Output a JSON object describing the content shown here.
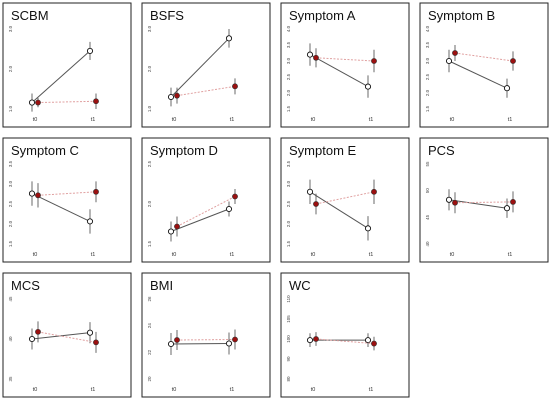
{
  "chart_data": [
    {
      "type": "line",
      "title": "SCBM",
      "x": [
        "t0",
        "t1"
      ],
      "ytick_labels": [
        "1.0",
        "2.0",
        "3.0"
      ],
      "ylim": [
        0.7,
        3.8
      ],
      "series": [
        {
          "marker": "open-black",
          "values": [
            0.95,
            2.95
          ],
          "err": [
            0.35,
            0.35
          ]
        },
        {
          "marker": "red-dot",
          "values": [
            0.95,
            1.0
          ],
          "err": [
            0.18,
            0.3
          ]
        }
      ]
    },
    {
      "type": "line",
      "title": "BSFS",
      "x": [
        "t0",
        "t1"
      ],
      "ytick_labels": [
        "1.0",
        "2.0",
        "3.0"
      ],
      "ylim": [
        0.9,
        3.9
      ],
      "series": [
        {
          "marker": "open-black",
          "values": [
            1.35,
            3.55
          ],
          "err": [
            0.35,
            0.35
          ]
        },
        {
          "marker": "red-dot",
          "values": [
            1.4,
            1.75
          ],
          "err": [
            0.3,
            0.3
          ]
        }
      ]
    },
    {
      "type": "line",
      "title": "Symptom A",
      "x": [
        "t0",
        "t1"
      ],
      "ytick_labels": [
        "1.5",
        "2.0",
        "2.5",
        "3.0",
        "3.5",
        "4.0"
      ],
      "ylim": [
        1.5,
        4.0
      ],
      "series": [
        {
          "marker": "open-black",
          "values": [
            3.2,
            2.2
          ],
          "err": [
            0.35,
            0.35
          ]
        },
        {
          "marker": "red-dot",
          "values": [
            3.1,
            3.0
          ],
          "err": [
            0.3,
            0.35
          ]
        }
      ]
    },
    {
      "type": "line",
      "title": "Symptom B",
      "x": [
        "t0",
        "t1"
      ],
      "ytick_labels": [
        "1.5",
        "2.0",
        "2.5",
        "3.0",
        "3.5",
        "4.0"
      ],
      "ylim": [
        1.5,
        4.0
      ],
      "series": [
        {
          "marker": "open-black",
          "values": [
            3.0,
            2.15
          ],
          "err": [
            0.35,
            0.3
          ]
        },
        {
          "marker": "red-dot",
          "values": [
            3.25,
            3.0
          ],
          "err": [
            0.25,
            0.3
          ]
        }
      ]
    },
    {
      "type": "line",
      "title": "Symptom C",
      "x": [
        "t0",
        "t1"
      ],
      "ytick_labels": [
        "1.5",
        "2.0",
        "2.5",
        "3.0",
        "3.5"
      ],
      "ylim": [
        1.5,
        3.8
      ],
      "series": [
        {
          "marker": "open-black",
          "values": [
            2.95,
            2.15
          ],
          "err": [
            0.35,
            0.35
          ]
        },
        {
          "marker": "red-dot",
          "values": [
            2.9,
            3.0
          ],
          "err": [
            0.35,
            0.3
          ]
        }
      ]
    },
    {
      "type": "line",
      "title": "Symptom D",
      "x": [
        "t0",
        "t1"
      ],
      "ytick_labels": [
        "1.5",
        "2.0",
        "2.5"
      ],
      "ylim": [
        1.3,
        2.9
      ],
      "series": [
        {
          "marker": "open-black",
          "values": [
            1.55,
            2.0
          ],
          "err": [
            0.2,
            0.15
          ]
        },
        {
          "marker": "red-dot",
          "values": [
            1.65,
            2.25
          ],
          "err": [
            0.2,
            0.15
          ]
        }
      ]
    },
    {
      "type": "line",
      "title": "Symptom E",
      "x": [
        "t0",
        "t1"
      ],
      "ytick_labels": [
        "1.5",
        "2.0",
        "2.5",
        "3.0",
        "3.5"
      ],
      "ylim": [
        1.5,
        3.8
      ],
      "series": [
        {
          "marker": "open-black",
          "values": [
            3.0,
            1.95
          ],
          "err": [
            0.35,
            0.35
          ]
        },
        {
          "marker": "red-dot",
          "values": [
            2.65,
            3.0
          ],
          "err": [
            0.3,
            0.35
          ]
        }
      ]
    },
    {
      "type": "line",
      "title": "PCS",
      "x": [
        "t0",
        "t1"
      ],
      "ytick_labels": [
        "40",
        "45",
        "50",
        "55"
      ],
      "ylim": [
        38,
        57
      ],
      "series": [
        {
          "marker": "open-black",
          "values": [
            48.5,
            46.5
          ],
          "err": [
            2.5,
            2.3
          ]
        },
        {
          "marker": "red-dot",
          "values": [
            47.8,
            48.0
          ],
          "err": [
            2.5,
            2.5
          ]
        }
      ]
    },
    {
      "type": "line",
      "title": "MCS",
      "x": [
        "t0",
        "t1"
      ],
      "ytick_labels": [
        "35",
        "40",
        "45"
      ],
      "ylim": [
        31,
        50
      ],
      "series": [
        {
          "marker": "open-black",
          "values": [
            40.5,
            42.0
          ],
          "err": [
            2.5,
            2.5
          ]
        },
        {
          "marker": "red-dot",
          "values": [
            42.2,
            39.7
          ],
          "err": [
            2.5,
            2.5
          ]
        }
      ]
    },
    {
      "type": "line",
      "title": "BMI",
      "x": [
        "t0",
        "t1"
      ],
      "ytick_labels": [
        "20",
        "22",
        "24",
        "26"
      ],
      "ylim": [
        19.5,
        27.5
      ],
      "series": [
        {
          "marker": "open-black",
          "values": [
            23.0,
            23.05
          ],
          "err": [
            1.1,
            1.1
          ]
        },
        {
          "marker": "red-dot",
          "values": [
            23.4,
            23.45
          ],
          "err": [
            1.0,
            1.0
          ]
        }
      ]
    },
    {
      "type": "line",
      "title": "WC",
      "x": [
        "t0",
        "t1"
      ],
      "ytick_labels": [
        "80",
        "90",
        "100",
        "105",
        "110"
      ],
      "ylim": [
        77,
        112
      ],
      "series": [
        {
          "marker": "open-black",
          "values": [
            94.0,
            94.0
          ],
          "err": [
            3.0,
            3.0
          ]
        },
        {
          "marker": "red-dot",
          "values": [
            94.5,
            92.5
          ],
          "err": [
            3.0,
            3.0
          ]
        }
      ]
    }
  ],
  "colors": {
    "black_line": "#555555",
    "red_line": "#e0a0a0",
    "red_marker": "#9b1010",
    "frame": "#222222",
    "errorbar": "#444444"
  }
}
